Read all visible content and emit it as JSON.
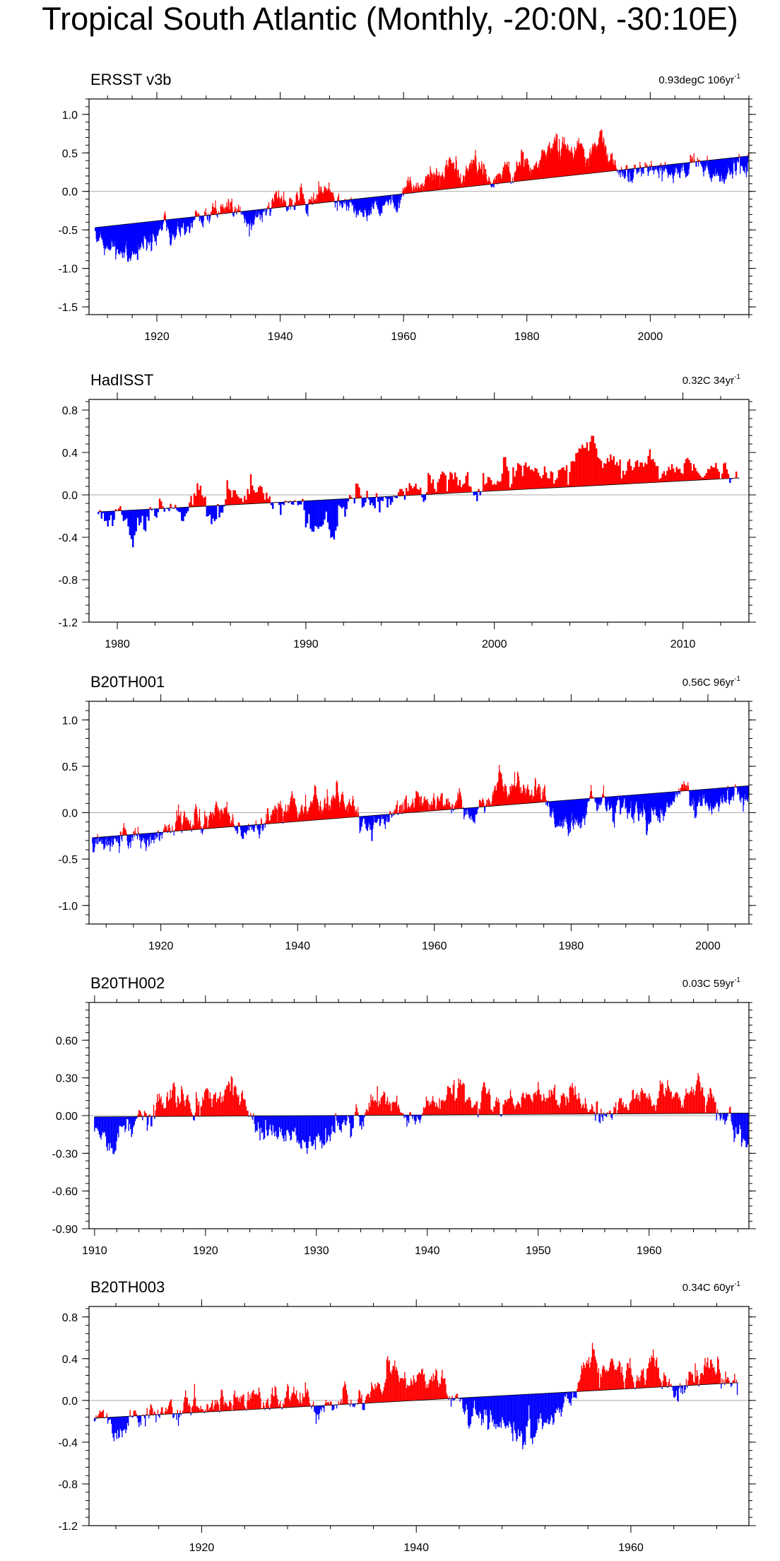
{
  "title": "Tropical South Atlantic (Monthly, -20:0N, -30:10E)",
  "colors": {
    "positive": "#ff0000",
    "negative": "#0000ff",
    "axis": "#000000",
    "zero_line": "#aaaaaa"
  },
  "chart_data": [
    {
      "type": "area",
      "panel_label": "ERSST v3b",
      "trend_label": "0.93degC 106yr",
      "trend_sup": "-1",
      "xlim": [
        1909,
        2016
      ],
      "ylim": [
        -1.6,
        1.2
      ],
      "xticks": [
        1920,
        1940,
        1960,
        1980,
        2000
      ],
      "xtick_labels": [
        "1920",
        "1940",
        "1960",
        "1980",
        "2000"
      ],
      "yticks": [
        1.0,
        0.5,
        0.0,
        -0.5,
        -1.0,
        -1.5
      ],
      "ytick_labels": [
        "1.0",
        "0.5",
        "0.0",
        "-0.5",
        "-1.0",
        "-1.5"
      ],
      "trend": {
        "x0": 1910,
        "y0": -0.47,
        "x1": 2016,
        "y1": 0.46
      },
      "series_start": 1910,
      "series_end": 2016,
      "anomaly_amplitude": 0.28,
      "seed": 11
    },
    {
      "type": "area",
      "panel_label": "HadISST",
      "trend_label": "0.32C 34yr",
      "trend_sup": "-1",
      "xlim": [
        1978.5,
        2013.5
      ],
      "ylim": [
        -1.2,
        0.9
      ],
      "xticks": [
        1980,
        1990,
        2000,
        2010
      ],
      "xtick_labels": [
        "1980",
        "1990",
        "2000",
        "2010"
      ],
      "yticks": [
        0.8,
        0.4,
        0.0,
        -0.4,
        -0.8,
        -1.2
      ],
      "ytick_labels": [
        "0.8",
        "0.4",
        "0.0",
        "-0.4",
        "-0.8",
        "-1.2"
      ],
      "trend": {
        "x0": 1979,
        "y0": -0.16,
        "x1": 2013,
        "y1": 0.16
      },
      "series_start": 1979,
      "series_end": 2013,
      "anomaly_amplitude": 0.3,
      "seed": 23
    },
    {
      "type": "area",
      "panel_label": "B20TH001",
      "trend_label": "0.56C 96yr",
      "trend_sup": "-1",
      "xlim": [
        1909.5,
        2006
      ],
      "ylim": [
        -1.2,
        1.2
      ],
      "xticks": [
        1920,
        1940,
        1960,
        1980,
        2000
      ],
      "xtick_labels": [
        "1920",
        "1940",
        "1960",
        "1980",
        "2000"
      ],
      "yticks": [
        1.0,
        0.5,
        0.0,
        -0.5,
        -1.0
      ],
      "ytick_labels": [
        "1.0",
        "0.5",
        "0.0",
        "-0.5",
        "-1.0"
      ],
      "trend": {
        "x0": 1910,
        "y0": -0.27,
        "x1": 2006,
        "y1": 0.29
      },
      "series_start": 1910,
      "series_end": 2006,
      "anomaly_amplitude": 0.26,
      "seed": 37
    },
    {
      "type": "area",
      "panel_label": "B20TH002",
      "trend_label": "0.03C 59yr",
      "trend_sup": "-1",
      "xlim": [
        1909.5,
        1969
      ],
      "ylim": [
        -0.9,
        0.9
      ],
      "xticks": [
        1910,
        1920,
        1930,
        1940,
        1950,
        1960
      ],
      "xtick_labels": [
        "1910",
        "1920",
        "1930",
        "1940",
        "1950",
        "1960"
      ],
      "yticks": [
        0.6,
        0.3,
        0.0,
        -0.3,
        -0.6,
        -0.9
      ],
      "ytick_labels": [
        "0.60",
        "0.30",
        "0.00",
        "-0.30",
        "-0.60",
        "-0.90"
      ],
      "trend": {
        "x0": 1910,
        "y0": -0.01,
        "x1": 1969,
        "y1": 0.02
      },
      "series_start": 1910,
      "series_end": 1969,
      "anomaly_amplitude": 0.22,
      "seed": 53
    },
    {
      "type": "area",
      "panel_label": "B20TH003",
      "trend_label": "0.34C 60yr",
      "trend_sup": "-1",
      "xlim": [
        1909.5,
        1971
      ],
      "ylim": [
        -1.2,
        0.9
      ],
      "xticks": [
        1920,
        1940,
        1960
      ],
      "xtick_labels": [
        "1920",
        "1940",
        "1960"
      ],
      "yticks": [
        0.8,
        0.4,
        0.0,
        -0.4,
        -0.8,
        -1.2
      ],
      "ytick_labels": [
        "0.8",
        "0.4",
        "0.0",
        "-0.4",
        "-0.8",
        "-1.2"
      ],
      "trend": {
        "x0": 1910,
        "y0": -0.17,
        "x1": 1970,
        "y1": 0.17
      },
      "series_start": 1910,
      "series_end": 1970,
      "anomaly_amplitude": 0.26,
      "seed": 71
    }
  ]
}
